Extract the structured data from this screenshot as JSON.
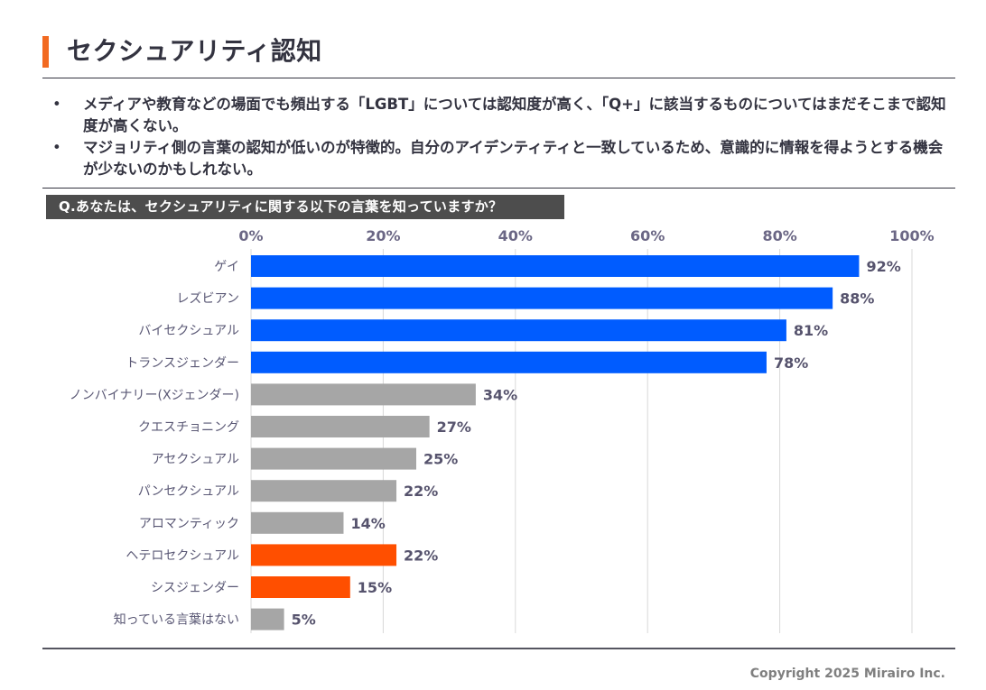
{
  "header": {
    "title": "セクシュアリティ認知",
    "accent_color": "#f26a21"
  },
  "bullets": [
    "メディアや教育などの場面でも頻出する「LGBT」については認知度が高く、「Q+」に該当するものについてはまだそこまで認知度が高くない。",
    "マジョリティ側の言葉の認知が低いのが特徴的。自分のアイデンティティと一致しているため、意識的に情報を得ようとする機会が少ないのかもしれない。"
  ],
  "question": "Q.あなたは、セクシュアリティに関する以下の言葉を知っていますか？",
  "footer": {
    "copyright": "Copyright 2025 Mirairo Inc."
  },
  "chart_data": {
    "type": "bar",
    "orientation": "horizontal",
    "title": "Q.あなたは、セクシュアリティに関する以下の言葉を知っていますか？",
    "xlabel": "",
    "ylabel": "",
    "xlim": [
      0,
      100
    ],
    "x_ticks": [
      0,
      20,
      40,
      60,
      80,
      100
    ],
    "x_tick_labels": [
      "0%",
      "20%",
      "40%",
      "60%",
      "80%",
      "100%"
    ],
    "x_axis_position": "top",
    "grid": true,
    "legend": "none",
    "categories": [
      "ゲイ",
      "レズビアン",
      "バイセクシュアル",
      "トランスジェンダー",
      "ノンバイナリー(Xジェンダー)",
      "クエスチョニング",
      "アセクシュアル",
      "パンセクシュアル",
      "アロマンティック",
      "ヘテロセクシュアル",
      "シスジェンダー",
      "知っている言葉はない"
    ],
    "values": [
      92,
      88,
      81,
      78,
      34,
      27,
      25,
      22,
      14,
      22,
      15,
      5
    ],
    "data_labels": [
      "92%",
      "88%",
      "81%",
      "78%",
      "34%",
      "27%",
      "25%",
      "22%",
      "14%",
      "22%",
      "15%",
      "5%"
    ],
    "bar_groups": [
      "lgbt",
      "lgbt",
      "lgbt",
      "lgbt",
      "other",
      "other",
      "other",
      "other",
      "other",
      "majority",
      "majority",
      "other"
    ],
    "colors": {
      "lgbt": "#005cff",
      "other": "#a6a6a6",
      "majority": "#ff4f00",
      "grid": "#d9d9d9",
      "tick_label": "#6b6785",
      "category_label": "#5a5875",
      "data_label": "#56536d"
    }
  }
}
